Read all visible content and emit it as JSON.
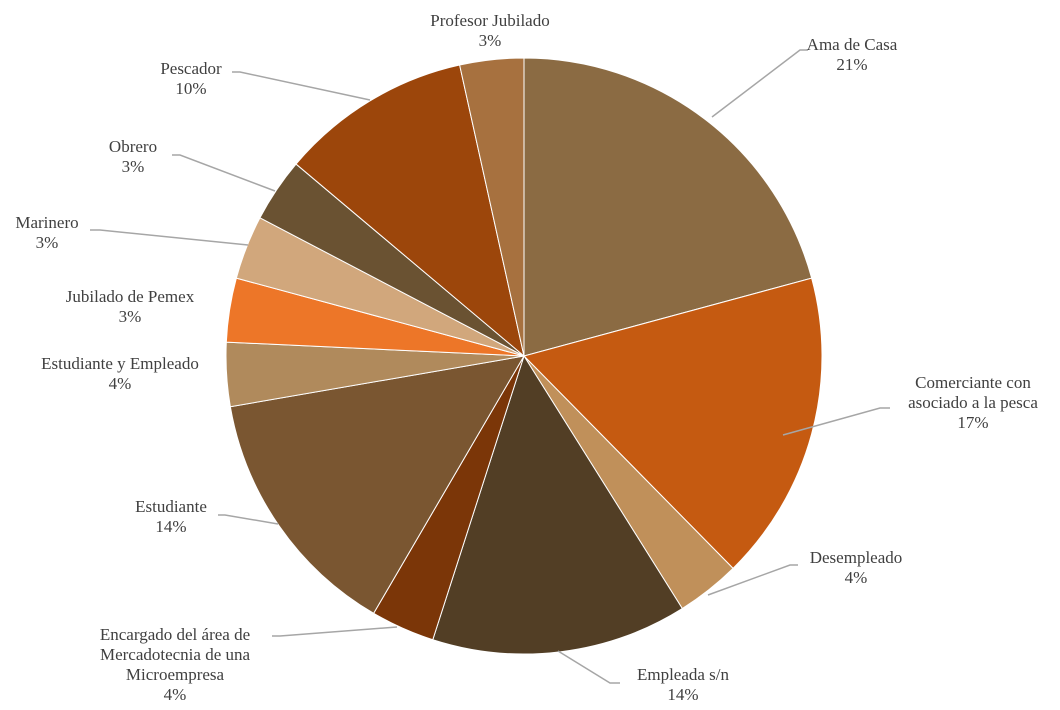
{
  "chart_data": {
    "type": "pie",
    "title": "",
    "slices": [
      {
        "label_lines": [
          "Ama de Casa"
        ],
        "value_label": "21%",
        "value": 21,
        "color": "#8b6b43"
      },
      {
        "label_lines": [
          "Comerciante con",
          "asociado a la  pesca"
        ],
        "value_label": "17%",
        "value": 17,
        "color": "#c55a11"
      },
      {
        "label_lines": [
          "Desempleado"
        ],
        "value_label": "4%",
        "value": 3.5,
        "color": "#c0905a"
      },
      {
        "label_lines": [
          "Empleada  s/n"
        ],
        "value_label": "14%",
        "value": 14,
        "color": "#523e25"
      },
      {
        "label_lines": [
          "Encargado del área de",
          "Mercadotecnia de una",
          "Microempresa"
        ],
        "value_label": "4%",
        "value": 3.5,
        "color": "#7b3608"
      },
      {
        "label_lines": [
          "Estudiante"
        ],
        "value_label": "14%",
        "value": 14,
        "color": "#7a5631"
      },
      {
        "label_lines": [
          "Estudiante  y Empleado"
        ],
        "value_label": "4%",
        "value": 3.5,
        "color": "#b08a5c"
      },
      {
        "label_lines": [
          "Jubilado de Pemex"
        ],
        "value_label": "3%",
        "value": 3.5,
        "color": "#ed7628"
      },
      {
        "label_lines": [
          "Marinero"
        ],
        "value_label": "3%",
        "value": 3.5,
        "color": "#d1a77c"
      },
      {
        "label_lines": [
          "Obrero"
        ],
        "value_label": "3%",
        "value": 3.5,
        "color": "#6a5232"
      },
      {
        "label_lines": [
          "Pescador"
        ],
        "value_label": "10%",
        "value": 10.5,
        "color": "#9c460b"
      },
      {
        "label_lines": [
          "Profesor Jubilado"
        ],
        "value_label": "3%",
        "value": 3.5,
        "color": "#a7713f"
      }
    ]
  }
}
